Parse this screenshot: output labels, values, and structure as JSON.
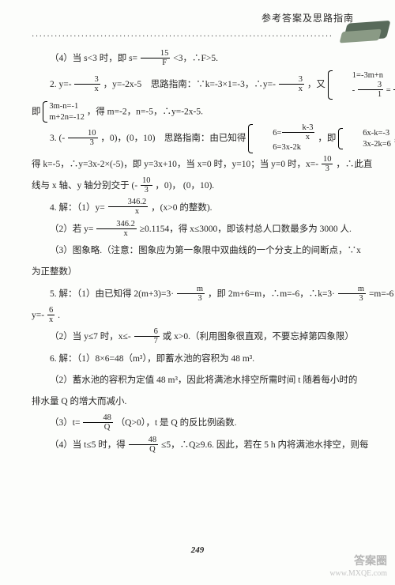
{
  "header": {
    "title": "参考答案及思路指南"
  },
  "dots": "···············································································",
  "lines": {
    "l1_a": "（4）当 s<3 时，即 s=",
    "l1_b": "<3，∴F>5.",
    "f1": {
      "n": "15",
      "d": "F"
    },
    "l2_a": "2. y=-",
    "f2": {
      "n": "3",
      "d": "x"
    },
    "l2_b": "，y=-2x-5　思路指南：∵k=-3×1=-3，∴y=-",
    "f3": {
      "n": "3",
      "d": "x"
    },
    "l2_c": "，又",
    "sys1_r1": "1=-3m+n",
    "sys1_r2a": "-",
    "sys1_r2_f": {
      "n": "3",
      "d": "1"
    },
    "sys1_r2b": "=",
    "sys1_r2_f2": {
      "n": "1",
      "d": "2"
    },
    "sys1_r2c": "m+n，",
    "l3_a": "即",
    "sys2_r1": "3m-n=-1",
    "sys2_r2": "m+2n=-12",
    "l3_b": "，得 m=-2，n=-5，∴y=-2x-5.",
    "l4_a": "3. (-",
    "f4": {
      "n": "10",
      "d": "3"
    },
    "l4_b": "，0)，(0，10)　思路指南：由已知得",
    "sys3_r1a": "6=",
    "sys3_r1_f": {
      "n": "k-3",
      "d": "x"
    },
    "sys3_r2": "6=3x-2k",
    "l4_c": "，即",
    "sys4_r1": "6x-k=-3",
    "sys4_r2": "3x-2k=6",
    "l4_d": "，",
    "l5_a": "得 k=-5，∴y=3x-2×(-5)，即 y=3x+10，当 x=0 时，y=10；当 y=0 时，x=-",
    "f5": {
      "n": "10",
      "d": "3"
    },
    "l5_b": "，∴此直",
    "l6_a": "线与 x 轴、y 轴分别交于 (-",
    "f6": {
      "n": "10",
      "d": "3"
    },
    "l6_b": "，0)， (0，10).",
    "l7_a": "4. 解：（1）y=",
    "f7": {
      "n": "346.2",
      "d": "x"
    },
    "l7_b": "，(x>0 的整数).",
    "l8_a": "（2）若 y=",
    "f8": {
      "n": "346.2",
      "d": "x"
    },
    "l8_b": "≥0.1154，得 x≤3000，即该村总人口数最多为 3000 人.",
    "l9": "（3）图象略.（注意：图象应为第一象限中双曲线的一个分支上的间断点，∵x",
    "l10": "为正整数）",
    "l11_a": "5. 解：（1）由已知得 2(m+3)=3·",
    "f11": {
      "n": "m",
      "d": "3"
    },
    "l11_b": "，即 2m+6=m，∴m=-6，∴k=3·",
    "f11b": {
      "n": "m",
      "d": "3"
    },
    "l11_c": "=m=-6，",
    "l12_a": "y=-",
    "f12": {
      "n": "6",
      "d": "x"
    },
    "l12_b": ".",
    "l13_a": "（2）当 y≤7 时，x≤-",
    "f13": {
      "n": "6",
      "d": "7"
    },
    "l13_b": "或 x>0.（利用图象很直观，不要忘掉第四象限）",
    "l14": "6. 解：（1）8×6=48（m³），即蓄水池的容积为 48 m³.",
    "l15": "（2）蓄水池的容积为定值 48 m³，因此将满池水排空所需时间 t 随着每小时的",
    "l16": "排水量 Q 的增大而减小.",
    "l17_a": "（3）t=",
    "f17": {
      "n": "48",
      "d": "Q"
    },
    "l17_b": "（Q>0），t 是 Q 的反比例函数.",
    "l18_a": "（4）当 t≤5 时，得",
    "f18": {
      "n": "48",
      "d": "Q"
    },
    "l18_b": "≤5，∴Q≥9.6. 因此，若在 5 h 内将满池水排空，则每"
  },
  "pagenum": "249",
  "watermark": {
    "line1": "答案圈",
    "line2": "www.MXQE.com"
  }
}
